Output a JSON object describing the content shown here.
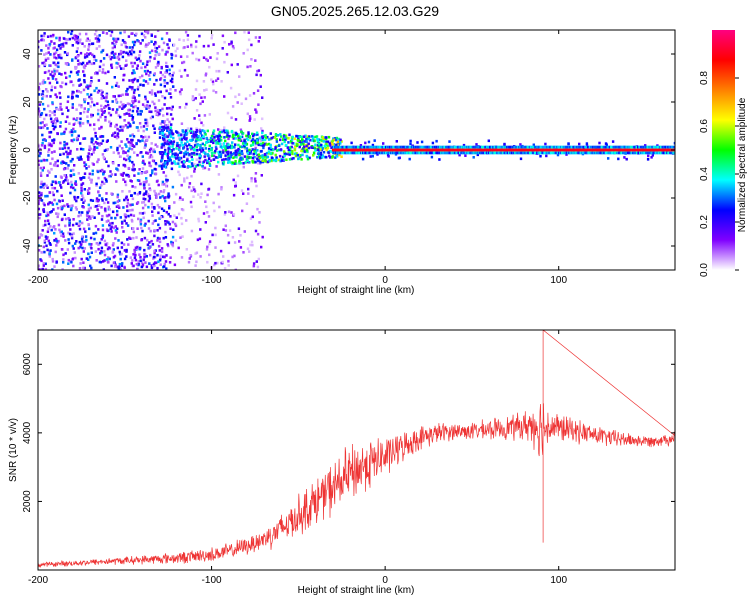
{
  "title": "GN05.2025.265.12.03.G29",
  "chart_data": [
    {
      "type": "heatmap",
      "title": "GN05.2025.265.12.03.G29",
      "xlabel": "Height of straight line (km)",
      "ylabel": "Frequency (Hz)",
      "xlim": [
        -200,
        167
      ],
      "ylim": [
        -50,
        50
      ],
      "xticks": [
        -200,
        -100,
        0,
        100
      ],
      "xtick_labels": [
        "-200",
        "-100",
        "0",
        "100"
      ],
      "yticks": [
        -40,
        -20,
        0,
        20,
        40
      ],
      "ytick_labels": [
        "-40",
        "-20",
        "0",
        "20",
        "40"
      ],
      "colorbar": {
        "label": "Normalized spectral amplitude",
        "range": [
          0,
          1
        ],
        "ticks": [
          0,
          0.2,
          0.4,
          0.6,
          0.8
        ],
        "tick_labels": [
          "0.0",
          "0.2",
          "0.4",
          "0.6",
          "0.8"
        ],
        "colormap": [
          "#ffffff",
          "#8000ff",
          "#0000ff",
          "#00ffff",
          "#00ff00",
          "#ffff00",
          "#ff8000",
          "#ff0000",
          "#ff0080"
        ]
      },
      "ridge": {
        "frequency_hz": 0,
        "starts_km": -30,
        "amplitude": 0.9
      },
      "noise_regions": [
        {
          "x_from": -200,
          "x_to": -122,
          "density": "dense",
          "amplitude": "0.1-0.3"
        },
        {
          "x_from": -122,
          "x_to": -70,
          "density": "sparse",
          "amplitude": "0.05-0.2"
        },
        {
          "x_from": -130,
          "x_to": -30,
          "frequency_range": [
            -8,
            10
          ],
          "amplitude": "0.2-0.5"
        }
      ]
    },
    {
      "type": "line",
      "xlabel": "Height of straight line (km)",
      "ylabel": "SNR (10 * v/v)",
      "xlim": [
        -200,
        167
      ],
      "ylim": [
        0,
        7000
      ],
      "xticks": [
        -200,
        -100,
        0,
        100
      ],
      "xtick_labels": [
        "-200",
        "-100",
        "0",
        "100"
      ],
      "yticks": [
        2000,
        4000,
        6000
      ],
      "ytick_labels": [
        "2000",
        "4000",
        "6000"
      ],
      "series": [
        {
          "name": "SNR",
          "color": "#ee3333",
          "x": [
            -200,
            -180,
            -160,
            -140,
            -120,
            -110,
            -100,
            -90,
            -80,
            -70,
            -60,
            -50,
            -40,
            -30,
            -20,
            -10,
            0,
            10,
            20,
            30,
            40,
            50,
            60,
            70,
            80,
            85,
            90,
            95,
            100,
            110,
            120,
            130,
            140,
            150,
            160,
            167
          ],
          "y": [
            150,
            200,
            250,
            300,
            350,
            400,
            450,
            550,
            700,
            900,
            1200,
            1600,
            2000,
            2400,
            2800,
            3100,
            3300,
            3600,
            3850,
            4000,
            4050,
            4050,
            4100,
            4150,
            4200,
            4250,
            4200,
            4200,
            4150,
            4050,
            3950,
            3850,
            3800,
            3750,
            3800,
            3850
          ],
          "noise_amplitude": [
            80,
            100,
            120,
            150,
            200,
            220,
            250,
            280,
            300,
            400,
            550,
            700,
            800,
            900,
            1000,
            900,
            700,
            500,
            400,
            350,
            300,
            300,
            350,
            400,
            500,
            700,
            1200,
            600,
            500,
            400,
            350,
            300,
            250,
            200,
            200,
            250
          ],
          "annotations": [
            {
              "x": 91,
              "y": 7000,
              "note": "peak spike"
            },
            {
              "x": 91,
              "y": 800,
              "note": "deep dip"
            }
          ]
        }
      ]
    }
  ]
}
